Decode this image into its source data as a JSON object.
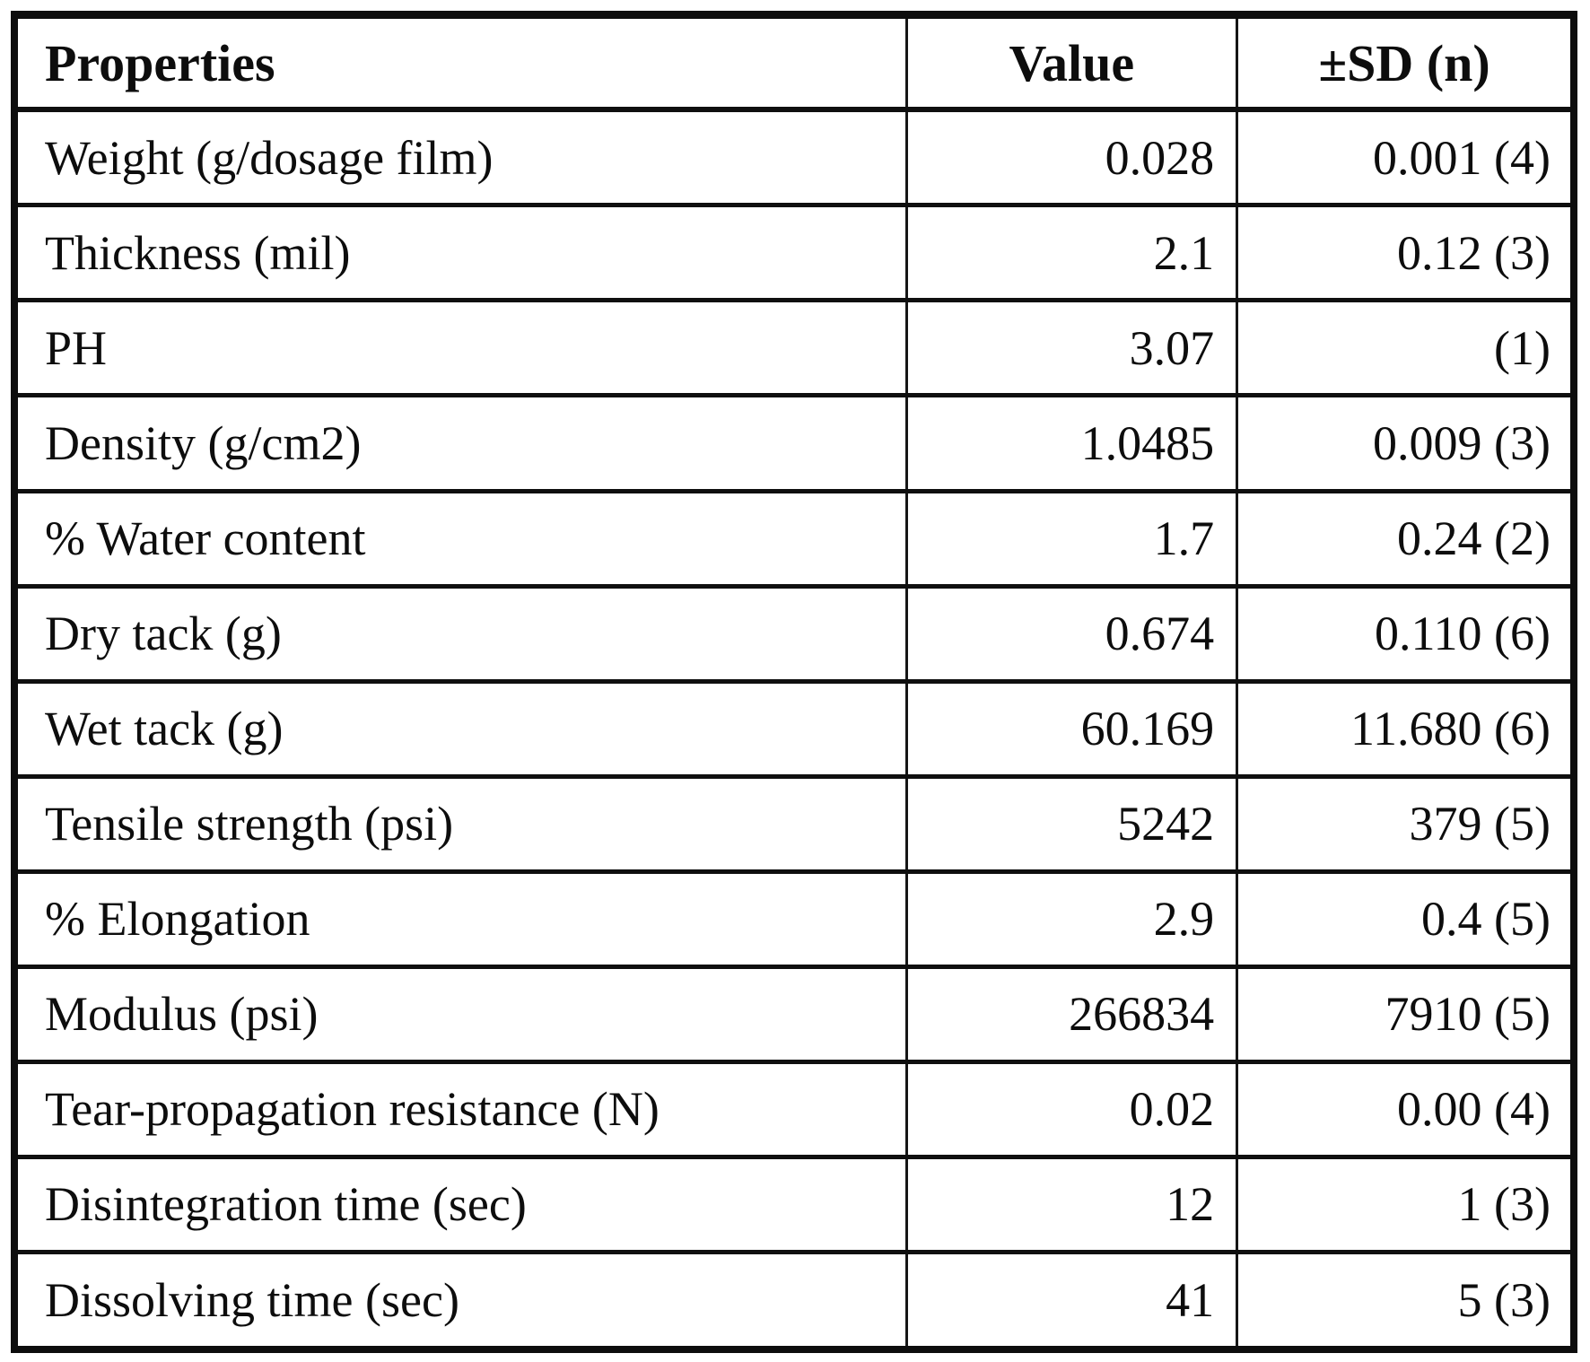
{
  "table": {
    "headers": {
      "property": "Properties",
      "value": "Value",
      "sd": "±SD (n)"
    },
    "rows": [
      {
        "property": "Weight (g/dosage film)",
        "value": "0.028",
        "sd": "0.001 (4)"
      },
      {
        "property": "Thickness (mil)",
        "value": "2.1",
        "sd": "0.12 (3)"
      },
      {
        "property": "PH",
        "value": "3.07",
        "sd": "(1)"
      },
      {
        "property": "Density (g/cm2)",
        "value": "1.0485",
        "sd": "0.009 (3)"
      },
      {
        "property": "% Water content",
        "value": "1.7",
        "sd": "0.24 (2)"
      },
      {
        "property": "Dry tack (g)",
        "value": "0.674",
        "sd": "0.110 (6)"
      },
      {
        "property": "Wet tack (g)",
        "value": "60.169",
        "sd": "11.680 (6)"
      },
      {
        "property": "Tensile strength (psi)",
        "value": "5242",
        "sd": "379 (5)"
      },
      {
        "property": "% Elongation",
        "value": "2.9",
        "sd": "0.4 (5)"
      },
      {
        "property": "Modulus (psi)",
        "value": "266834",
        "sd": "7910 (5)"
      },
      {
        "property": "Tear-propagation resistance (N)",
        "value": "0.02",
        "sd": "0.00 (4)"
      },
      {
        "property": "Disintegration time (sec)",
        "value": "12",
        "sd": "1 (3)"
      },
      {
        "property": "Dissolving time (sec)",
        "value": "41",
        "sd": "5 (3)"
      }
    ],
    "colors": {
      "border": "#0d0d0d",
      "text": "#0d0d0d",
      "background": "#ffffff"
    }
  }
}
